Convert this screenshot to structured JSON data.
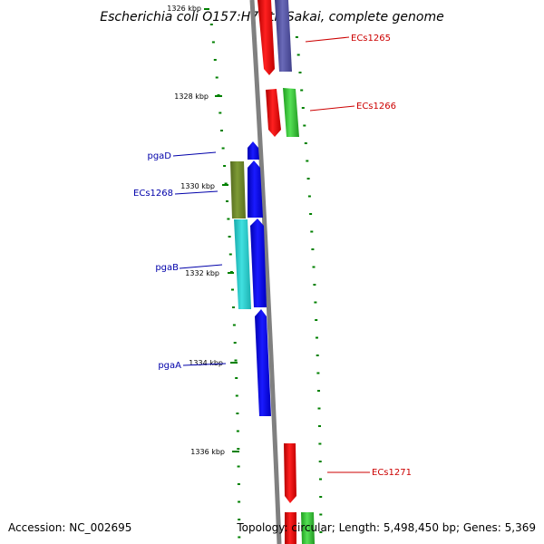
{
  "title": "Escherichia coli O157:H7 str. Sakai, complete genome",
  "footer": {
    "accession": "Accession: NC_002695",
    "summary": "Topology: circular; Length: 5,498,450 bp; Genes: 5,369"
  },
  "ruler_labels": [
    "1326 kbp",
    "1328 kbp",
    "1330 kbp",
    "1332 kbp",
    "1334 kbp",
    "1336 kbp"
  ],
  "gene_labels": [
    {
      "name": "ECs1265",
      "color": "#cc0000"
    },
    {
      "name": "ECs1266",
      "color": "#cc0000"
    },
    {
      "name": "pgaD",
      "color": "#0000aa"
    },
    {
      "name": "ECs1268",
      "color": "#0000aa"
    },
    {
      "name": "pgaB",
      "color": "#0000aa"
    },
    {
      "name": "pgaA",
      "color": "#0000aa"
    },
    {
      "name": "ECs1271",
      "color": "#cc0000"
    }
  ],
  "colors": {
    "backbone": "#808080",
    "tick": "#008000",
    "forward_gene": "#ee0000",
    "reverse_gene": "#0000ee",
    "slate_gene": "#4b4b96",
    "green_gene": "#33cc33",
    "olive_gene": "#6b8e23",
    "cyan_gene": "#22cccc"
  }
}
